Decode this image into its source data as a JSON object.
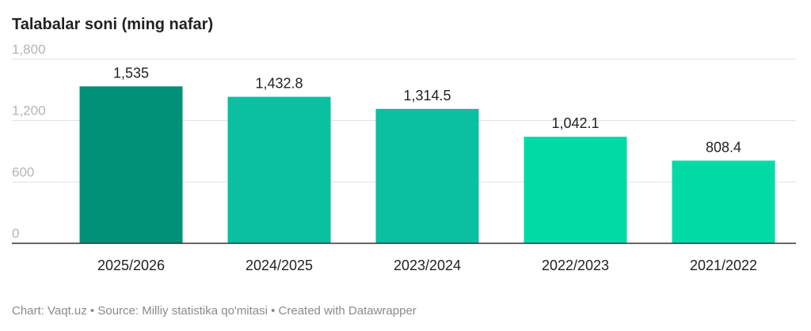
{
  "chart_data": {
    "type": "bar",
    "title": "Talabalar soni (ming nafar)",
    "categories": [
      "2025/2026",
      "2024/2025",
      "2023/2024",
      "2022/2023",
      "2021/2022"
    ],
    "values": [
      1535,
      1432.8,
      1314.5,
      1042.1,
      808.4
    ],
    "value_labels": [
      "1,535",
      "1,432.8",
      "1,314.5",
      "1,042.1",
      "808.4"
    ],
    "colors": [
      "#009178",
      "#0bbfa1",
      "#0bbfa1",
      "#00dba6",
      "#00dba6"
    ],
    "ylim": [
      0,
      1800
    ],
    "yticks": [
      0,
      600,
      {
        "value": 1200,
        "label": "1,200"
      },
      {
        "value": 1800,
        "label": "1,800"
      }
    ],
    "grid": true,
    "footer": "Chart: Vaqt.uz • Source: Milliy statistika qo'mitasi • Created with Datawrapper"
  }
}
